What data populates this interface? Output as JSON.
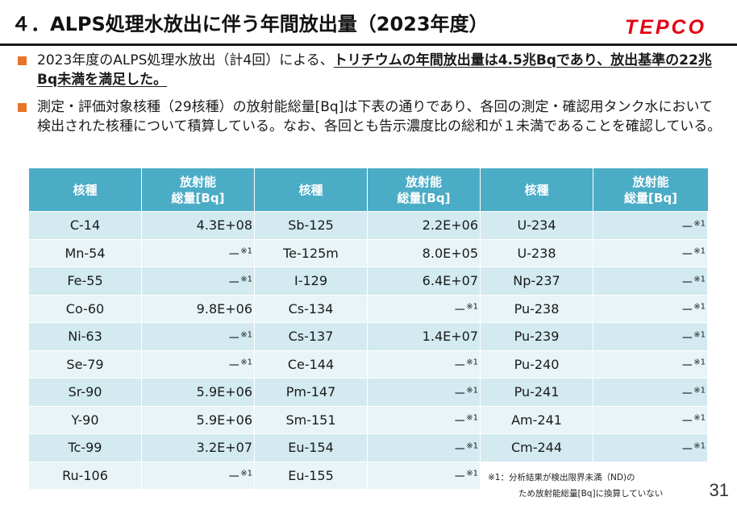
{
  "header": {
    "title": "４．ALPS処理水放出に伴う年間放出量（2023年度）",
    "logo": "TEPCO"
  },
  "bullets": {
    "b1_plain": "2023年度のALPS処理水放出（計4回）による、",
    "b1_bold": "トリチウムの年間放出量は4.5兆Bqであり、放出基準の22兆Bq未満を満足した。",
    "b2": "測定・評価対象核種（29核種）の放射能総量[Bq]は下表の通りであり、各回の測定・確認用タンク水において検出された核種について積算している。なお、各回とも告示濃度比の総和が１未満であることを確認している。"
  },
  "table": {
    "headers": {
      "nuclide": "核種",
      "activity_l1": "放射能",
      "activity_l2": "総量[Bq]"
    },
    "rows": [
      [
        {
          "n": "C-14",
          "v": "4.3E+08"
        },
        {
          "n": "Sb-125",
          "v": "2.2E+06"
        },
        {
          "n": "U-234",
          "v": "－※1"
        }
      ],
      [
        {
          "n": "Mn-54",
          "v": "－※1"
        },
        {
          "n": "Te-125m",
          "v": "8.0E+05"
        },
        {
          "n": "U-238",
          "v": "－※1"
        }
      ],
      [
        {
          "n": "Fe-55",
          "v": "－※1"
        },
        {
          "n": "I-129",
          "v": "6.4E+07"
        },
        {
          "n": "Np-237",
          "v": "－※1"
        }
      ],
      [
        {
          "n": "Co-60",
          "v": "9.8E+06"
        },
        {
          "n": "Cs-134",
          "v": "－※1"
        },
        {
          "n": "Pu-238",
          "v": "－※1"
        }
      ],
      [
        {
          "n": "Ni-63",
          "v": "－※1"
        },
        {
          "n": "Cs-137",
          "v": "1.4E+07"
        },
        {
          "n": "Pu-239",
          "v": "－※1"
        }
      ],
      [
        {
          "n": "Se-79",
          "v": "－※1"
        },
        {
          "n": "Ce-144",
          "v": "－※1"
        },
        {
          "n": "Pu-240",
          "v": "－※1"
        }
      ],
      [
        {
          "n": "Sr-90",
          "v": "5.9E+06"
        },
        {
          "n": "Pm-147",
          "v": "－※1"
        },
        {
          "n": "Pu-241",
          "v": "－※1"
        }
      ],
      [
        {
          "n": "Y-90",
          "v": "5.9E+06"
        },
        {
          "n": "Sm-151",
          "v": "－※1"
        },
        {
          "n": "Am-241",
          "v": "－※1"
        }
      ],
      [
        {
          "n": "Tc-99",
          "v": "3.2E+07"
        },
        {
          "n": "Eu-154",
          "v": "－※1"
        },
        {
          "n": "Cm-244",
          "v": "－※1"
        }
      ],
      [
        {
          "n": "Ru-106",
          "v": "－※1"
        },
        {
          "n": "Eu-155",
          "v": "－※1"
        },
        null
      ]
    ]
  },
  "footnote": {
    "line1": "※1：分析結果が検出限界未満（ND)の",
    "line2": "ため放射能総量[Bq]に換算していない"
  },
  "page_number": "31",
  "colors": {
    "header_fill": "#4bacc6",
    "row_odd": "#d2eaf0",
    "row_even": "#e8f4f7",
    "bullet": "#e8742a",
    "logo": "#e60012"
  }
}
